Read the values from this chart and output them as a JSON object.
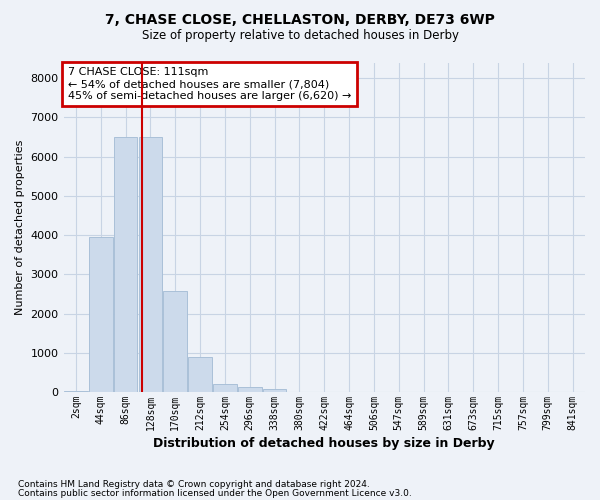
{
  "title_line1": "7, CHASE CLOSE, CHELLASTON, DERBY, DE73 6WP",
  "title_line2": "Size of property relative to detached houses in Derby",
  "xlabel": "Distribution of detached houses by size in Derby",
  "ylabel": "Number of detached properties",
  "categories": [
    "2sqm",
    "44sqm",
    "86sqm",
    "128sqm",
    "170sqm",
    "212sqm",
    "254sqm",
    "296sqm",
    "338sqm",
    "380sqm",
    "422sqm",
    "464sqm",
    "506sqm",
    "547sqm",
    "589sqm",
    "631sqm",
    "673sqm",
    "715sqm",
    "757sqm",
    "799sqm",
    "841sqm"
  ],
  "values": [
    30,
    3950,
    6500,
    6500,
    2580,
    900,
    210,
    130,
    70,
    0,
    0,
    0,
    0,
    0,
    0,
    0,
    0,
    0,
    0,
    0,
    0
  ],
  "bar_color": "#ccdaeb",
  "bar_edge_color": "#aac0d8",
  "grid_color": "#c8d4e4",
  "vline_color": "#cc0000",
  "annotation_line1": "7 CHASE CLOSE: 111sqm",
  "annotation_line2": "← 54% of detached houses are smaller (7,804)",
  "annotation_line3": "45% of semi-detached houses are larger (6,620) →",
  "annotation_box_color": "#ffffff",
  "annotation_box_edge": "#cc0000",
  "ylim": [
    0,
    8400
  ],
  "yticks": [
    0,
    1000,
    2000,
    3000,
    4000,
    5000,
    6000,
    7000,
    8000
  ],
  "footnote1": "Contains HM Land Registry data © Crown copyright and database right 2024.",
  "footnote2": "Contains public sector information licensed under the Open Government Licence v3.0.",
  "bg_color": "#eef2f8",
  "plot_bg_color": "#eef2f8"
}
